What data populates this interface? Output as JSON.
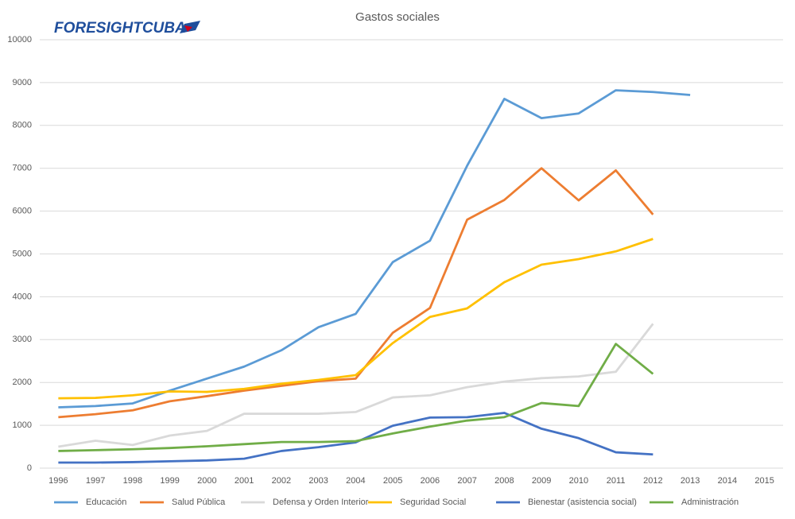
{
  "logo": "FORESIGHTCUBA",
  "chart_data": {
    "type": "line",
    "title": "Gastos sociales",
    "categories": [
      "1996",
      "1997",
      "1998",
      "1999",
      "2000",
      "2001",
      "2002",
      "2003",
      "2004",
      "2005",
      "2006",
      "2007",
      "2008",
      "2009",
      "2010",
      "2011",
      "2012",
      "2013",
      "2014",
      "2015"
    ],
    "ylim": [
      0,
      10000
    ],
    "yticks": [
      0,
      1000,
      2000,
      3000,
      4000,
      5000,
      6000,
      7000,
      8000,
      9000,
      10000
    ],
    "grid": true,
    "legend": "bottom",
    "series": [
      {
        "name": "Educación",
        "color": "#5b9bd5",
        "values": [
          1420,
          1450,
          1510,
          1810,
          2090,
          2370,
          2750,
          3290,
          3600,
          4810,
          5310,
          7060,
          8620,
          8170,
          8280,
          8820,
          8780,
          8710,
          null,
          null
        ]
      },
      {
        "name": "Salud Pública",
        "color": "#ed7d31",
        "values": [
          1190,
          1260,
          1350,
          1560,
          1680,
          1810,
          1920,
          2030,
          2090,
          3160,
          3740,
          5800,
          6260,
          7000,
          6250,
          6950,
          5920,
          null,
          null,
          null
        ]
      },
      {
        "name": "Defensa y Orden Interior",
        "color": "#d9d9d9",
        "values": [
          500,
          640,
          540,
          760,
          870,
          1270,
          1270,
          1270,
          1310,
          1650,
          1700,
          1890,
          2020,
          2100,
          2140,
          2250,
          3370,
          null,
          null,
          null
        ]
      },
      {
        "name": "Seguridad Social",
        "color": "#ffc000",
        "values": [
          1630,
          1640,
          1700,
          1790,
          1780,
          1850,
          1970,
          2060,
          2170,
          2920,
          3530,
          3730,
          4340,
          4750,
          4880,
          5060,
          5350,
          null,
          null,
          null
        ]
      },
      {
        "name": "Bienestar (asistencia social)",
        "color": "#4472c4",
        "values": [
          130,
          130,
          140,
          160,
          180,
          220,
          400,
          490,
          600,
          990,
          1180,
          1190,
          1290,
          920,
          700,
          370,
          320,
          null,
          null,
          null
        ]
      },
      {
        "name": "Administración",
        "color": "#70ad47",
        "values": [
          400,
          420,
          440,
          470,
          510,
          560,
          610,
          610,
          630,
          810,
          970,
          1110,
          1190,
          1520,
          1450,
          2900,
          2200,
          null,
          null,
          null
        ]
      }
    ]
  }
}
